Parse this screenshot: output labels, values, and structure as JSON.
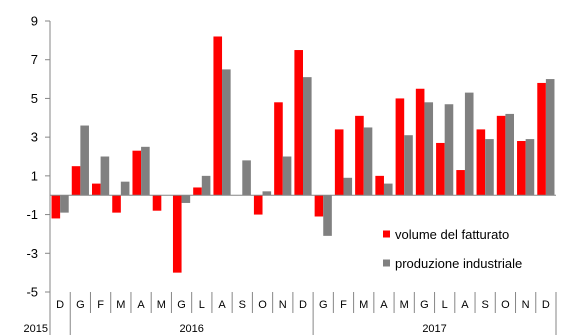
{
  "chart_data": {
    "type": "bar",
    "title": "",
    "xlabel": "",
    "ylabel": "",
    "ylim": [
      -5,
      9
    ],
    "y_ticks": [
      9,
      7,
      5,
      3,
      1,
      -1,
      -3,
      -5
    ],
    "grid": false,
    "legend_position": "bottom-right, inside plot",
    "categories": [
      "D",
      "G",
      "F",
      "M",
      "A",
      "M",
      "G",
      "L",
      "A",
      "S",
      "O",
      "N",
      "D",
      "G",
      "F",
      "M",
      "A",
      "M",
      "G",
      "L",
      "A",
      "S",
      "O",
      "N",
      "D"
    ],
    "years": [
      {
        "label": "2015",
        "start": 0,
        "end": 0
      },
      {
        "label": "2016",
        "start": 1,
        "end": 12
      },
      {
        "label": "2017",
        "start": 13,
        "end": 24
      }
    ],
    "series": [
      {
        "name": "volume del fatturato",
        "color": "#ff0000",
        "values": [
          -1.2,
          1.5,
          0.6,
          -0.9,
          2.3,
          -0.8,
          -4.0,
          0.4,
          8.2,
          0.0,
          -1.0,
          4.8,
          7.5,
          -1.1,
          3.4,
          4.1,
          1.0,
          5.0,
          5.5,
          2.7,
          1.3,
          3.4,
          4.1,
          2.8,
          5.8
        ]
      },
      {
        "name": "produzione industriale",
        "color": "#808080",
        "values": [
          -0.9,
          3.6,
          2.0,
          0.7,
          2.5,
          0.0,
          -0.4,
          1.0,
          6.5,
          1.8,
          0.2,
          2.0,
          6.1,
          -2.1,
          0.9,
          3.5,
          0.6,
          3.1,
          4.8,
          4.7,
          5.3,
          2.9,
          4.2,
          2.9,
          6.0
        ]
      }
    ]
  }
}
